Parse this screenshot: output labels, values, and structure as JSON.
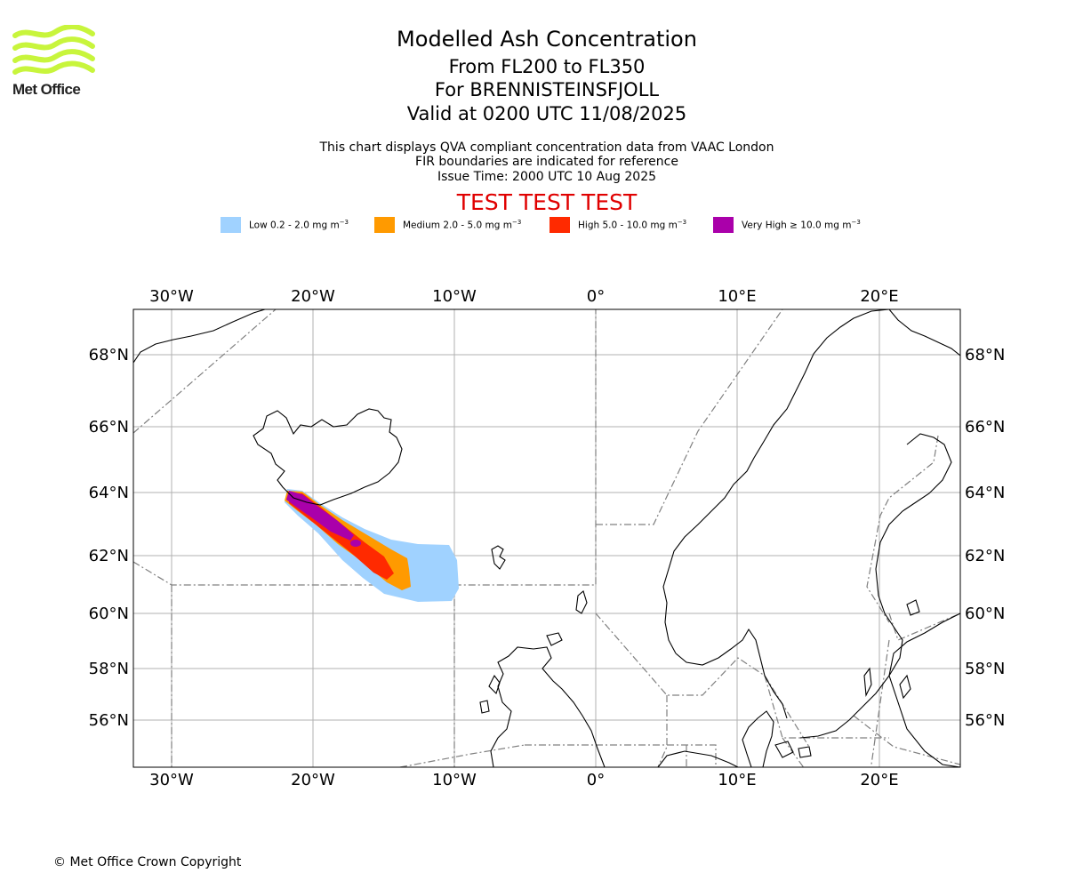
{
  "header": {
    "logo_text": "Met Office",
    "title": "Modelled Ash Concentration",
    "level_range": "From FL200 to FL350",
    "volcano": "For BRENNISTEINSFJOLL",
    "valid_time": "Valid at 0200 UTC 11/08/2025",
    "info_line1": "This chart displays QVA compliant concentration data from VAAC London",
    "info_line2": "FIR boundaries are indicated for reference",
    "info_line3": "Issue Time: 2000 UTC 10 Aug 2025",
    "test_banner": "TEST TEST TEST"
  },
  "legend": [
    {
      "label": "Low 0.2 - 2.0 mg m",
      "exp": "−3",
      "color": "#a0d2ff"
    },
    {
      "label": "Medium 2.0 - 5.0 mg m",
      "exp": "−3",
      "color": "#ff9a00"
    },
    {
      "label": "High 5.0 - 10.0 mg m",
      "exp": "−3",
      "color": "#ff2a00"
    },
    {
      "label": "Very High  ≥  10.0 mg m",
      "exp": "−3",
      "color": "#aa00aa"
    }
  ],
  "map": {
    "lon_labels": [
      "30°W",
      "20°W",
      "10°W",
      "0°",
      "10°E",
      "20°E"
    ],
    "lat_labels": [
      "68°N",
      "66°N",
      "64°N",
      "62°N",
      "60°N",
      "58°N",
      "56°N"
    ],
    "gridlines": true,
    "land_fill": "none",
    "coastline_color": "#000000",
    "fir_boundary_color": "#808080"
  },
  "footer": {
    "copyright": "© Met Office Crown Copyright"
  }
}
